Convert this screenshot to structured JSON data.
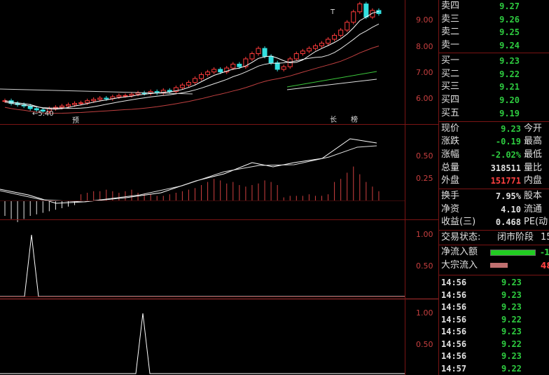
{
  "axes": {
    "price": [
      "9.00",
      "8.00",
      "7.00",
      "6.00"
    ],
    "volume": [
      "0.50",
      "0.25"
    ],
    "panel3": [
      "1.00",
      "0.50"
    ],
    "panel4": [
      "1.00",
      "0.50"
    ]
  },
  "chart_marks": {
    "low_price": "←5.40",
    "mark_1": "预",
    "mark_2": "长",
    "mark_3": "榜",
    "mark_t": "T"
  },
  "order_book": {
    "sell": [
      {
        "label": "卖四",
        "price": "9.27"
      },
      {
        "label": "卖三",
        "price": "9.26"
      },
      {
        "label": "卖二",
        "price": "9.25"
      },
      {
        "label": "卖一",
        "price": "9.24"
      }
    ],
    "buy": [
      {
        "label": "买一",
        "price": "9.23"
      },
      {
        "label": "买二",
        "price": "9.22"
      },
      {
        "label": "买三",
        "price": "9.21"
      },
      {
        "label": "买四",
        "price": "9.20"
      },
      {
        "label": "买五",
        "price": "9.19"
      }
    ]
  },
  "quote": {
    "current": {
      "label": "现价",
      "value": "9.23",
      "tail": "今开"
    },
    "change": {
      "label": "涨跌",
      "value": "-0.19",
      "tail": "最高"
    },
    "change_pct": {
      "label": "涨幅",
      "value": "-2.02%",
      "tail": "最低"
    },
    "total_volume": {
      "label": "总量",
      "value": "318511",
      "tail": "量比"
    },
    "outer": {
      "label": "外盘",
      "value": "151771",
      "tail": "内盘"
    },
    "turnover": {
      "label": "换手",
      "value": "7.95%",
      "tail": "股本"
    },
    "net_assets": {
      "label": "净资",
      "value": "4.10",
      "tail": "流通"
    },
    "earnings": {
      "label": "收益(三)",
      "value": "0.468",
      "tail": "PE(动"
    }
  },
  "status": {
    "label": "交易状态:",
    "value": "闭市阶段",
    "tail": "15"
  },
  "flows": {
    "net_inflow": {
      "label": "净流入额",
      "value": "-1",
      "bar_fraction": 0.9,
      "color": "#22cc22"
    },
    "block_inflow": {
      "label": "大宗流入",
      "value": "48",
      "bar_fraction": 0.35,
      "color": "#c07070"
    }
  },
  "ticks": [
    {
      "time": "14:56",
      "price": "9.23"
    },
    {
      "time": "14:56",
      "price": "9.23"
    },
    {
      "time": "14:56",
      "price": "9.23"
    },
    {
      "time": "14:56",
      "price": "9.22"
    },
    {
      "time": "14:56",
      "price": "9.23"
    },
    {
      "time": "14:56",
      "price": "9.22"
    },
    {
      "time": "14:56",
      "price": "9.23"
    },
    {
      "time": "14:57",
      "price": "9.22"
    }
  ],
  "colors": {
    "up": "#ff3b3b",
    "down": "#33e0e0",
    "grid": "#7a1414",
    "green": "#2ecc40"
  }
}
